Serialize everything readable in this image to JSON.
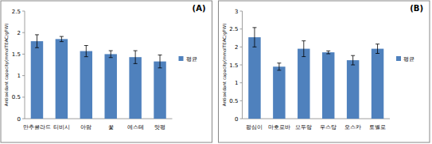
{
  "chart_data": [
    {
      "type": "bar",
      "title": "(A)",
      "y_label": "Antioxidant capacity(mmolTEAC/gFW)",
      "categories": [
        "만추콜라드",
        "티비시",
        "아람",
        "꽃",
        "에스테",
        "맛평"
      ],
      "series": [
        {
          "name": "평균",
          "color": "#4f81bd",
          "values": [
            1.8,
            1.85,
            1.57,
            1.5,
            1.43,
            1.33
          ],
          "errors": [
            0.15,
            0.06,
            0.13,
            0.08,
            0.15,
            0.15
          ]
        }
      ],
      "ylim": [
        0,
        2.5
      ],
      "yticks": [
        0,
        0.5,
        1,
        1.5,
        2,
        2.5
      ],
      "grid": false,
      "legend": "right"
    },
    {
      "type": "bar",
      "title": "(B)",
      "y_label": "Antioxidant capacity(mmolTEAC/gFW)",
      "categories": [
        "왕심이",
        "마호로바",
        "모두랑",
        "우스탕",
        "오스카",
        "토벨로"
      ],
      "series": [
        {
          "name": "평균",
          "color": "#4f81bd",
          "values": [
            2.27,
            1.45,
            1.95,
            1.85,
            1.63,
            1.95
          ],
          "errors": [
            0.27,
            0.1,
            0.22,
            0.04,
            0.13,
            0.13
          ]
        }
      ],
      "ylim": [
        0,
        3
      ],
      "yticks": [
        0,
        0.5,
        1,
        1.5,
        2,
        2.5,
        3
      ],
      "grid": false,
      "legend": "right"
    }
  ]
}
